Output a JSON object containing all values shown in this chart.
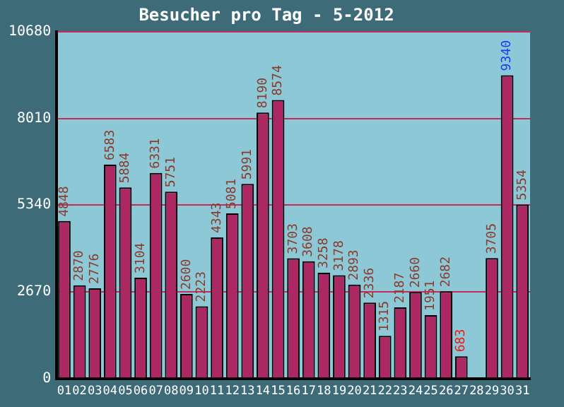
{
  "chart_data": {
    "type": "bar",
    "title": "Besucher pro Tag - 5-2012",
    "categories": [
      "01",
      "02",
      "03",
      "04",
      "05",
      "06",
      "07",
      "08",
      "09",
      "10",
      "11",
      "12",
      "13",
      "14",
      "15",
      "16",
      "17",
      "18",
      "19",
      "20",
      "21",
      "22",
      "23",
      "24",
      "25",
      "26",
      "27",
      "28",
      "29",
      "30",
      "31"
    ],
    "values": [
      4848,
      2870,
      2776,
      6583,
      5884,
      3104,
      6331,
      5751,
      2600,
      2223,
      4343,
      5081,
      5991,
      8190,
      8574,
      3703,
      3608,
      3258,
      3178,
      2893,
      2336,
      1315,
      2187,
      2660,
      1951,
      2682,
      683,
      null,
      3705,
      9340,
      5354
    ],
    "color": "#ab2862",
    "ylim": [
      0,
      10680
    ],
    "yticks": [
      0,
      2670,
      5340,
      8010,
      10680
    ],
    "grid": "y",
    "data_labels": true,
    "legend": false
  }
}
